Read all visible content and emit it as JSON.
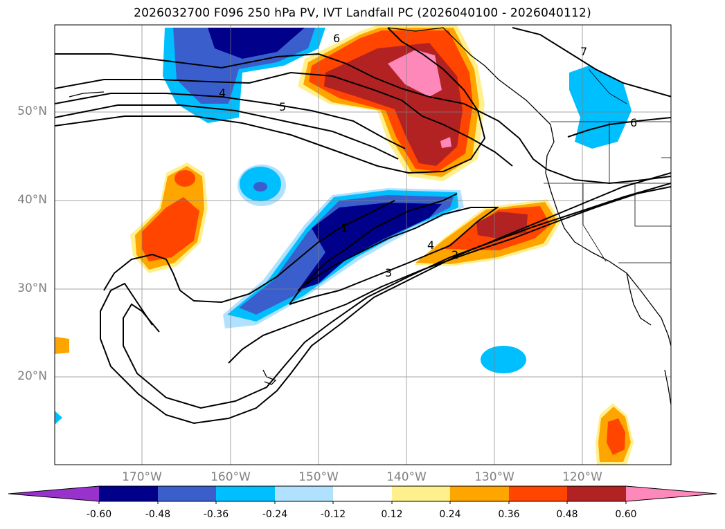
{
  "title": "2026032700 F096 250 hPa PV, IVT Landfall PC (2026040100 - 2026040112)",
  "longitude_labels": [
    "170°W",
    "160°W",
    "150°W",
    "140°W",
    "130°W",
    "120°W"
  ],
  "latitude_labels": [
    "50°N",
    "40°N",
    "30°N",
    "20°N"
  ],
  "contour_labels": [
    "1",
    "2",
    "3",
    "4",
    "4",
    "5",
    "6",
    "6",
    "7"
  ],
  "colorbar": {
    "tick_labels": [
      "-0.60",
      "-0.48",
      "-0.36",
      "-0.24",
      "-0.12",
      "0.12",
      "0.24",
      "0.36",
      "0.48",
      "0.60"
    ],
    "colors": [
      "#9932cc",
      "#00008b",
      "#3a5fcd",
      "#00bfff",
      "#b0e2ff",
      "#ffffff",
      "#fff08c",
      "#ffa500",
      "#ff4500",
      "#b22222",
      "#ff88bb"
    ]
  }
}
